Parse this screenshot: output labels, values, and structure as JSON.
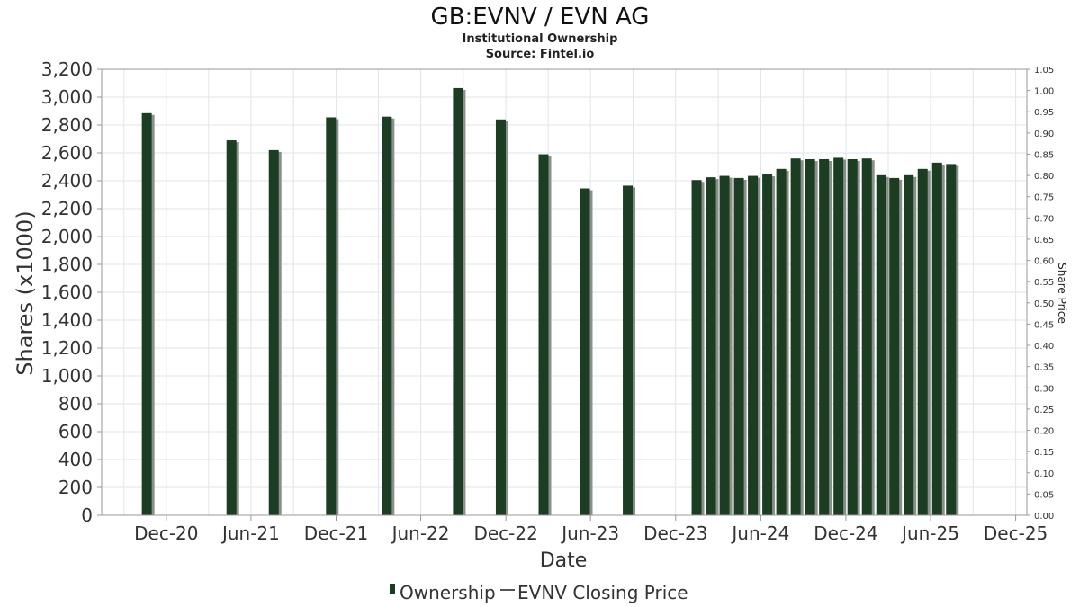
{
  "chart_data": {
    "type": "bar",
    "title": "GB:EVNV / EVN AG",
    "subtitle": "Institutional Ownership",
    "source": "Source: Fintel.io",
    "xlabel": "Date",
    "ylabel": "Shares (x1000)",
    "y2label": "Share Price",
    "ylim": [
      0,
      3200
    ],
    "y_ticks": [
      0,
      200,
      400,
      600,
      800,
      1000,
      1200,
      1400,
      1600,
      1800,
      2000,
      2200,
      2400,
      2600,
      2800,
      3000,
      3200
    ],
    "y_tick_labels": [
      "0",
      "200",
      "400",
      "600",
      "800",
      "1,000",
      "1,200",
      "1,400",
      "1,600",
      "1,800",
      "2,000",
      "2,200",
      "2,400",
      "2,600",
      "2,800",
      "3,000",
      "3,200"
    ],
    "y2lim": [
      0,
      1.05
    ],
    "y2_ticks": [
      "0.00",
      "0.05",
      "0.10",
      "0.15",
      "0.20",
      "0.25",
      "0.30",
      "0.35",
      "0.40",
      "0.45",
      "0.50",
      "0.55",
      "0.60",
      "0.65",
      "0.70",
      "0.75",
      "0.80",
      "0.85",
      "0.90",
      "0.95",
      "1.00",
      "1.05"
    ],
    "xlim": [
      "2020-07-15",
      "2025-12-25"
    ],
    "x_ticks": [
      {
        "date": "2020-12-01",
        "label": "Dec-20"
      },
      {
        "date": "2021-06-01",
        "label": "Jun-21"
      },
      {
        "date": "2021-12-01",
        "label": "Dec-21"
      },
      {
        "date": "2022-06-01",
        "label": "Jun-22"
      },
      {
        "date": "2022-12-01",
        "label": "Dec-22"
      },
      {
        "date": "2023-06-01",
        "label": "Jun-23"
      },
      {
        "date": "2023-12-01",
        "label": "Dec-23"
      },
      {
        "date": "2024-06-01",
        "label": "Jun-24"
      },
      {
        "date": "2024-12-01",
        "label": "Dec-24"
      },
      {
        "date": "2025-06-01",
        "label": "Jun-25"
      },
      {
        "date": "2025-12-01",
        "label": "Dec-25"
      }
    ],
    "grid": true,
    "legend_position": "bottom-center",
    "legend": [
      {
        "label": "Ownership",
        "color": "#1b3d22"
      },
      {
        "label": "EVNV Closing Price",
        "color": "#555555"
      }
    ],
    "series": [
      {
        "name": "Ownership",
        "color": "#1b3d22",
        "points": [
          {
            "x": "2020-10-20",
            "y": 2885
          },
          {
            "x": "2021-04-20",
            "y": 2690
          },
          {
            "x": "2021-07-20",
            "y": 2620
          },
          {
            "x": "2021-11-20",
            "y": 2855
          },
          {
            "x": "2022-03-20",
            "y": 2860
          },
          {
            "x": "2022-08-20",
            "y": 3065
          },
          {
            "x": "2022-11-20",
            "y": 2840
          },
          {
            "x": "2023-02-20",
            "y": 2590
          },
          {
            "x": "2023-05-20",
            "y": 2345
          },
          {
            "x": "2023-08-20",
            "y": 2365
          },
          {
            "x": "2024-01-15",
            "y": 2405
          },
          {
            "x": "2024-02-15",
            "y": 2425
          },
          {
            "x": "2024-03-15",
            "y": 2435
          },
          {
            "x": "2024-04-15",
            "y": 2420
          },
          {
            "x": "2024-05-15",
            "y": 2435
          },
          {
            "x": "2024-06-15",
            "y": 2445
          },
          {
            "x": "2024-07-15",
            "y": 2485
          },
          {
            "x": "2024-08-15",
            "y": 2560
          },
          {
            "x": "2024-09-15",
            "y": 2555
          },
          {
            "x": "2024-10-15",
            "y": 2555
          },
          {
            "x": "2024-11-15",
            "y": 2565
          },
          {
            "x": "2024-12-15",
            "y": 2555
          },
          {
            "x": "2025-01-15",
            "y": 2560
          },
          {
            "x": "2025-02-15",
            "y": 2440
          },
          {
            "x": "2025-03-15",
            "y": 2420
          },
          {
            "x": "2025-04-15",
            "y": 2440
          },
          {
            "x": "2025-05-15",
            "y": 2485
          },
          {
            "x": "2025-06-15",
            "y": 2530
          },
          {
            "x": "2025-07-15",
            "y": 2520
          }
        ]
      }
    ]
  }
}
